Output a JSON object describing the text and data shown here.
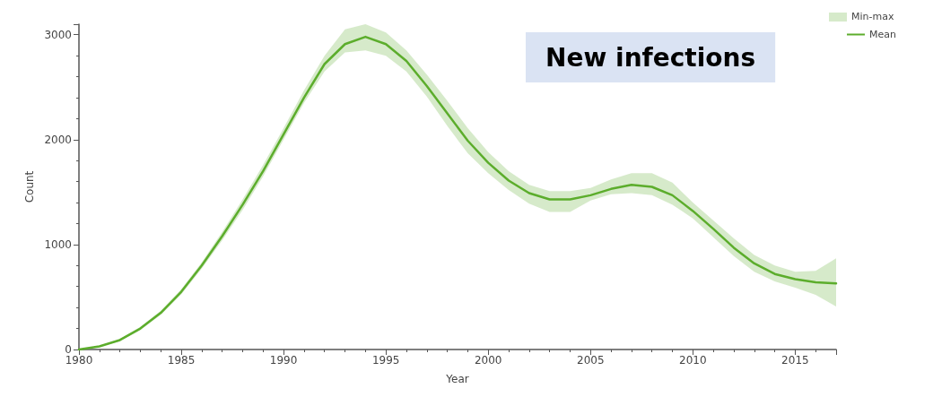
{
  "chart_data": {
    "type": "line",
    "title": "New infections",
    "annotations": [
      "Min-max"
    ],
    "xlabel": "Year",
    "ylabel": "Count",
    "x": [
      1980,
      1981,
      1982,
      1983,
      1984,
      1985,
      1986,
      1987,
      1988,
      1989,
      1990,
      1991,
      1992,
      1993,
      1994,
      1995,
      1996,
      1997,
      1998,
      1999,
      2000,
      2001,
      2002,
      2003,
      2004,
      2005,
      2006,
      2007,
      2008,
      2009,
      2010,
      2011,
      2012,
      2013,
      2014,
      2015,
      2016,
      2017
    ],
    "series": [
      {
        "name": "Mean",
        "color": "#5cad2c",
        "lower": [
          0,
          25,
          80,
          185,
          330,
          525,
          770,
          1040,
          1330,
          1650,
          2000,
          2350,
          2650,
          2830,
          2850,
          2800,
          2650,
          2410,
          2130,
          1870,
          1680,
          1520,
          1390,
          1310,
          1310,
          1420,
          1480,
          1490,
          1470,
          1380,
          1250,
          1070,
          890,
          740,
          650,
          590,
          520,
          410
        ],
        "upper": [
          0,
          35,
          100,
          215,
          370,
          575,
          830,
          1120,
          1430,
          1760,
          2110,
          2470,
          2800,
          3050,
          3100,
          3020,
          2850,
          2620,
          2370,
          2110,
          1880,
          1700,
          1570,
          1510,
          1510,
          1540,
          1620,
          1680,
          1680,
          1590,
          1400,
          1230,
          1060,
          900,
          800,
          740,
          750,
          870
        ],
        "values": [
          0,
          30,
          90,
          200,
          350,
          550,
          800,
          1080,
          1380,
          1700,
          2050,
          2400,
          2720,
          2910,
          2980,
          2910,
          2750,
          2510,
          2250,
          1990,
          1780,
          1610,
          1490,
          1430,
          1430,
          1470,
          1530,
          1570,
          1550,
          1470,
          1320,
          1150,
          970,
          820,
          720,
          670,
          640,
          630
        ]
      }
    ],
    "xlim": [
      1980,
      2017
    ],
    "xticks": [
      1980,
      1985,
      1990,
      1995,
      2000,
      2005,
      2010,
      2015
    ],
    "ylim": [
      0,
      3100
    ],
    "yticks": [
      0,
      1000,
      2000,
      3000
    ],
    "grid": false,
    "legend": "top right",
    "marker": "none",
    "line_style": "solid"
  }
}
